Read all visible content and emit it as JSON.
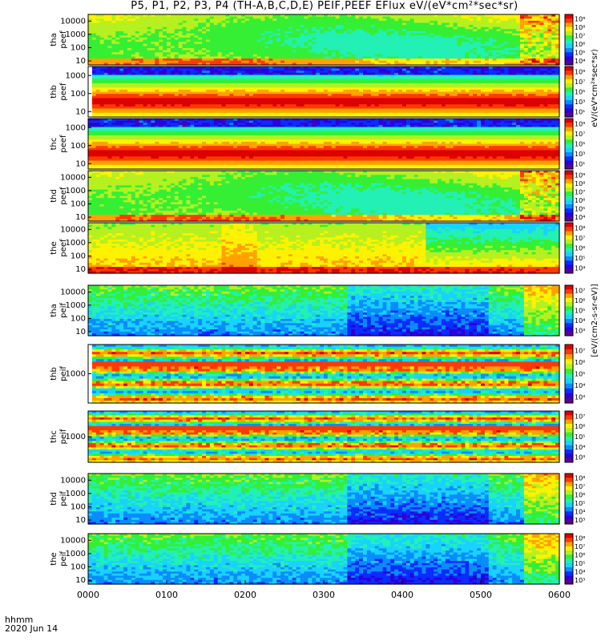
{
  "title": "P5, P1, P2, P3, P4 (TH-A,B,C,D,E) PEIF,PEEF EFlux eV/(eV*cm²*sec*sr)",
  "footer": {
    "line1": "hhmm",
    "line2": "2020 Jun 14"
  },
  "colorbar_units_label": "[eV/(cm2-s-sr-eV)]",
  "colorbar_units_label_top": "eV/(eV*cm²*sec*sr)",
  "colorscale": [
    "#5a0094",
    "#2c00d8",
    "#0a2cff",
    "#0a8cff",
    "#18d2ff",
    "#22f0b4",
    "#35ef35",
    "#b6f020",
    "#fff200",
    "#ffa200",
    "#ff3a00",
    "#dc0000"
  ],
  "chart_data": {
    "type": "heatmap",
    "x_axis": {
      "ticks": [
        "0000",
        "0100",
        "0200",
        "0300",
        "0400",
        "0500",
        "0600"
      ],
      "range": [
        "00:00",
        "06:00"
      ]
    },
    "panels": [
      {
        "id": "tha-peef",
        "probe_label": "tha",
        "product_label": "peef",
        "yscale": "log",
        "ytick_labels": [
          "10",
          "100",
          "1000",
          "10000"
        ],
        "colorbar_ticks": [
          "10⁴",
          "10⁵",
          "10⁶",
          "10⁷",
          "10⁸",
          "10⁹"
        ],
        "pattern": "ee_green",
        "gap_until_min": 0
      },
      {
        "id": "thb-peef",
        "probe_label": "thb",
        "product_label": "peef",
        "yscale": "log",
        "ytick_labels": [
          "10",
          "100",
          "1000"
        ],
        "colorbar_ticks": [
          "10¹",
          "10³",
          "10⁵",
          "10⁷",
          "10⁹"
        ],
        "pattern": "bands_red",
        "gap_until_min": 3
      },
      {
        "id": "thc-peef",
        "probe_label": "thc",
        "product_label": "peef",
        "yscale": "log",
        "ytick_labels": [
          "10",
          "100",
          "1000"
        ],
        "colorbar_ticks": [
          "10¹",
          "10³",
          "10⁵",
          "10⁷",
          "10⁹"
        ],
        "pattern": "bands_red",
        "gap_until_min": 0
      },
      {
        "id": "thd-peef",
        "probe_label": "thd",
        "product_label": "peef",
        "yscale": "log",
        "ytick_labels": [
          "10",
          "100",
          "1000",
          "10000"
        ],
        "colorbar_ticks": [
          "10⁴",
          "10⁵",
          "10⁶",
          "10⁷",
          "10⁸",
          "10⁹"
        ],
        "pattern": "ee_green",
        "gap_until_min": 0
      },
      {
        "id": "the-peef",
        "probe_label": "the",
        "product_label": "peef",
        "yscale": "log",
        "ytick_labels": [
          "10",
          "100",
          "1000",
          "10000"
        ],
        "colorbar_ticks": [
          "10⁴",
          "10⁵",
          "10⁶",
          "10⁷",
          "10⁸"
        ],
        "pattern": "ee_hot",
        "gap_until_min": 0
      },
      {
        "id": "tha-peif",
        "probe_label": "tha",
        "product_label": "peif",
        "yscale": "log",
        "ytick_labels": [
          "10",
          "100",
          "1000",
          "10000"
        ],
        "colorbar_ticks": [
          "10³",
          "10⁴",
          "10⁵",
          "10⁶",
          "10⁷"
        ],
        "pattern": "ion",
        "gap_until_min": 0
      },
      {
        "id": "thb-peif",
        "probe_label": "thb",
        "product_label": "peif",
        "yscale": "log",
        "ytick_labels": [
          "1000"
        ],
        "colorbar_ticks": [
          "10³",
          "10⁴",
          "10⁵",
          "10⁶",
          "10⁷"
        ],
        "pattern": "ion_bands",
        "gap_until_min": 3
      },
      {
        "id": "thc-peif",
        "probe_label": "thc",
        "product_label": "peif",
        "yscale": "log",
        "ytick_labels": [
          "1000"
        ],
        "colorbar_ticks": [
          "10³",
          "10⁴",
          "10⁵",
          "10⁶",
          "10⁷"
        ],
        "pattern": "ion_bands",
        "gap_until_min": 0
      },
      {
        "id": "thd-peif",
        "probe_label": "thd",
        "product_label": "peif",
        "yscale": "log",
        "ytick_labels": [
          "10",
          "100",
          "1000",
          "10000"
        ],
        "colorbar_ticks": [
          "10³",
          "10⁴",
          "10⁵",
          "10⁶",
          "10⁷",
          "10⁸"
        ],
        "pattern": "ion",
        "gap_until_min": 0
      },
      {
        "id": "the-peif",
        "probe_label": "the",
        "product_label": "peif",
        "yscale": "log",
        "ytick_labels": [
          "10",
          "100",
          "1000",
          "10000"
        ],
        "colorbar_ticks": [
          "10³",
          "10⁴",
          "10⁵",
          "10⁶",
          "10⁷",
          "10⁸"
        ],
        "pattern": "ion",
        "gap_until_min": 0
      }
    ]
  }
}
